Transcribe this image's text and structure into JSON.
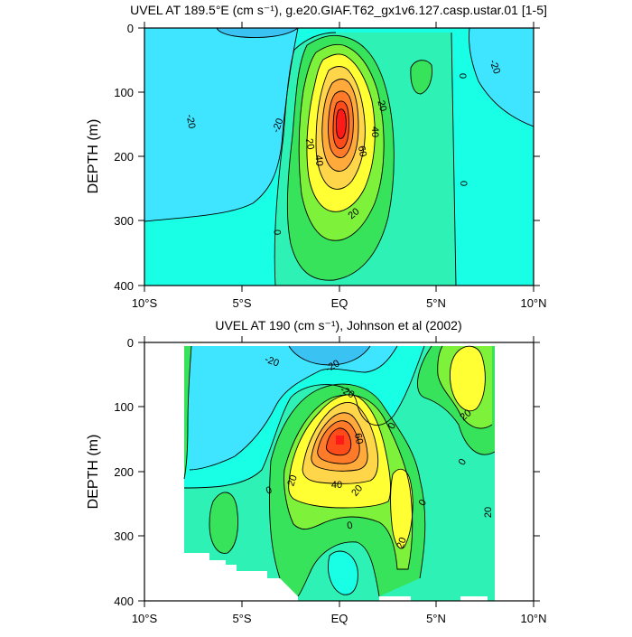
{
  "colors": {
    "c_neg30": "#39c2f2",
    "c_neg20": "#3fe5ff",
    "c_neg10": "#19ffe5",
    "c_0": "#2ef2b5",
    "c_10": "#36e35a",
    "c_20": "#7ef23a",
    "c_30": "#ffff33",
    "c_40": "#ffd54a",
    "c_50": "#ffaa3a",
    "c_60": "#ff7b2a",
    "c_70": "#ff4a1a",
    "c_80": "#ff1a1a"
  },
  "chart_data": [
    {
      "type": "heatmap",
      "title": "UVEL AT 189.5°E (cm s⁻¹), g.e20.GIAF.T62_gx1v6.127.casp.ustar.01 [1-5]",
      "ylabel": "DEPTH (m)",
      "xlim": [
        -10,
        10
      ],
      "ylim": [
        400,
        0
      ],
      "x_tick_labels": [
        "10°S",
        "5°S",
        "EQ",
        "5°N",
        "10°N"
      ],
      "y_tick_labels": [
        "0",
        "100",
        "200",
        "300",
        "400"
      ],
      "grid": false,
      "contour_labels": [
        "-20",
        "-20",
        "-20",
        "0",
        "0",
        "0",
        "20",
        "20",
        "20",
        "40",
        "40",
        "60"
      ],
      "core": {
        "lat": 0.2,
        "depth": 145,
        "max_speed": 80
      }
    },
    {
      "type": "heatmap",
      "title": "UVEL AT 190 (cm s⁻¹), Johnson et al (2002)",
      "ylabel": "DEPTH (m)",
      "xlim": [
        -10,
        10
      ],
      "ylim": [
        400,
        0
      ],
      "x_tick_labels": [
        "10°S",
        "5°S",
        "EQ",
        "5°N",
        "10°N"
      ],
      "y_tick_labels": [
        "0",
        "100",
        "200",
        "300",
        "400"
      ],
      "grid": false,
      "contour_labels": [
        "-20",
        "-20",
        "-20",
        "0",
        "0",
        "0",
        "0",
        "0",
        "20",
        "20",
        "20",
        "20",
        "20",
        "40",
        "60"
      ],
      "core": {
        "lat": 0.0,
        "depth": 150,
        "max_speed": 80
      }
    }
  ]
}
